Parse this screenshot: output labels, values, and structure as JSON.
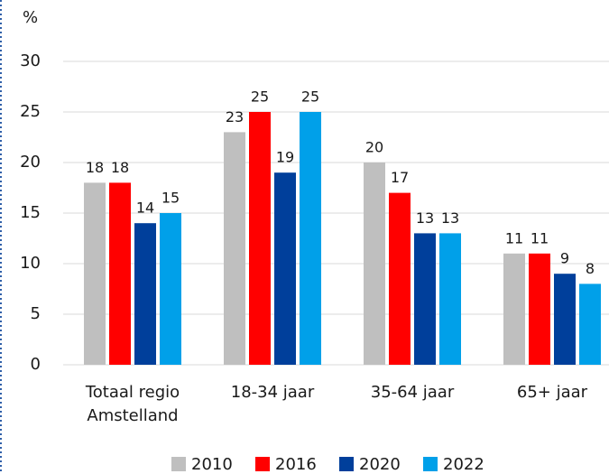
{
  "chart_data": {
    "type": "bar",
    "y_label": "%",
    "categories": [
      "Totaal regio Amstelland",
      "18-34 jaar",
      "35-64 jaar",
      "65+ jaar"
    ],
    "series": [
      {
        "name": "2010",
        "color": "#bfbfbf",
        "values": [
          18,
          23,
          20,
          11
        ]
      },
      {
        "name": "2016",
        "color": "#ff0000",
        "values": [
          18,
          25,
          17,
          11
        ]
      },
      {
        "name": "2020",
        "color": "#003f9b",
        "values": [
          14,
          19,
          13,
          9
        ]
      },
      {
        "name": "2022",
        "color": "#00a0e9",
        "values": [
          15,
          25,
          13,
          8
        ]
      }
    ],
    "ylim": [
      0,
      30
    ],
    "yticks": [
      0,
      5,
      10,
      15,
      20,
      25,
      30
    ],
    "grid": true,
    "legend": "bottom"
  }
}
